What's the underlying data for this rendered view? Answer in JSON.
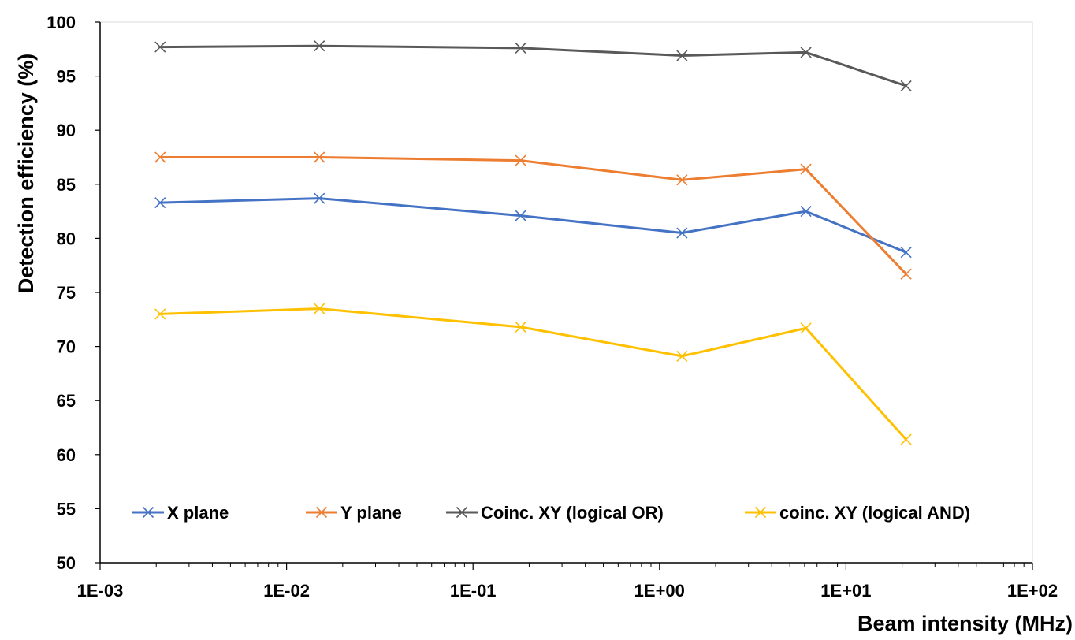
{
  "chart_data": {
    "type": "line",
    "title": "",
    "xlabel": "Beam intensity (MHz)",
    "ylabel": "Detection efficiency (%)",
    "xscale": "log",
    "xlim": [
      0.001,
      100
    ],
    "ylim": [
      50,
      100
    ],
    "x_ticks": [
      "1E-03",
      "1E-02",
      "1E-01",
      "1E+00",
      "1E+01",
      "1E+02"
    ],
    "y_ticks": [
      "50",
      "55",
      "60",
      "65",
      "70",
      "75",
      "80",
      "85",
      "90",
      "95",
      "100"
    ],
    "grid": false,
    "legend_position": "bottom-inside",
    "marker": "x",
    "x": [
      0.0021,
      0.015,
      0.18,
      1.32,
      6.1,
      21
    ],
    "series": [
      {
        "name": "X plane",
        "color": "#4472C4",
        "values": [
          83.3,
          83.7,
          82.1,
          80.5,
          82.5,
          78.7
        ]
      },
      {
        "name": "Y plane",
        "color": "#ED7D31",
        "values": [
          87.5,
          87.5,
          87.2,
          85.4,
          86.4,
          76.7
        ]
      },
      {
        "name": "Coinc. XY (logical OR)",
        "color": "#595959",
        "values": [
          97.7,
          97.8,
          97.6,
          96.9,
          97.2,
          94.1
        ]
      },
      {
        "name": "coinc. XY (logical AND)",
        "color": "#FFC000",
        "values": [
          73.0,
          73.5,
          71.8,
          69.1,
          71.7,
          61.4
        ]
      }
    ]
  }
}
